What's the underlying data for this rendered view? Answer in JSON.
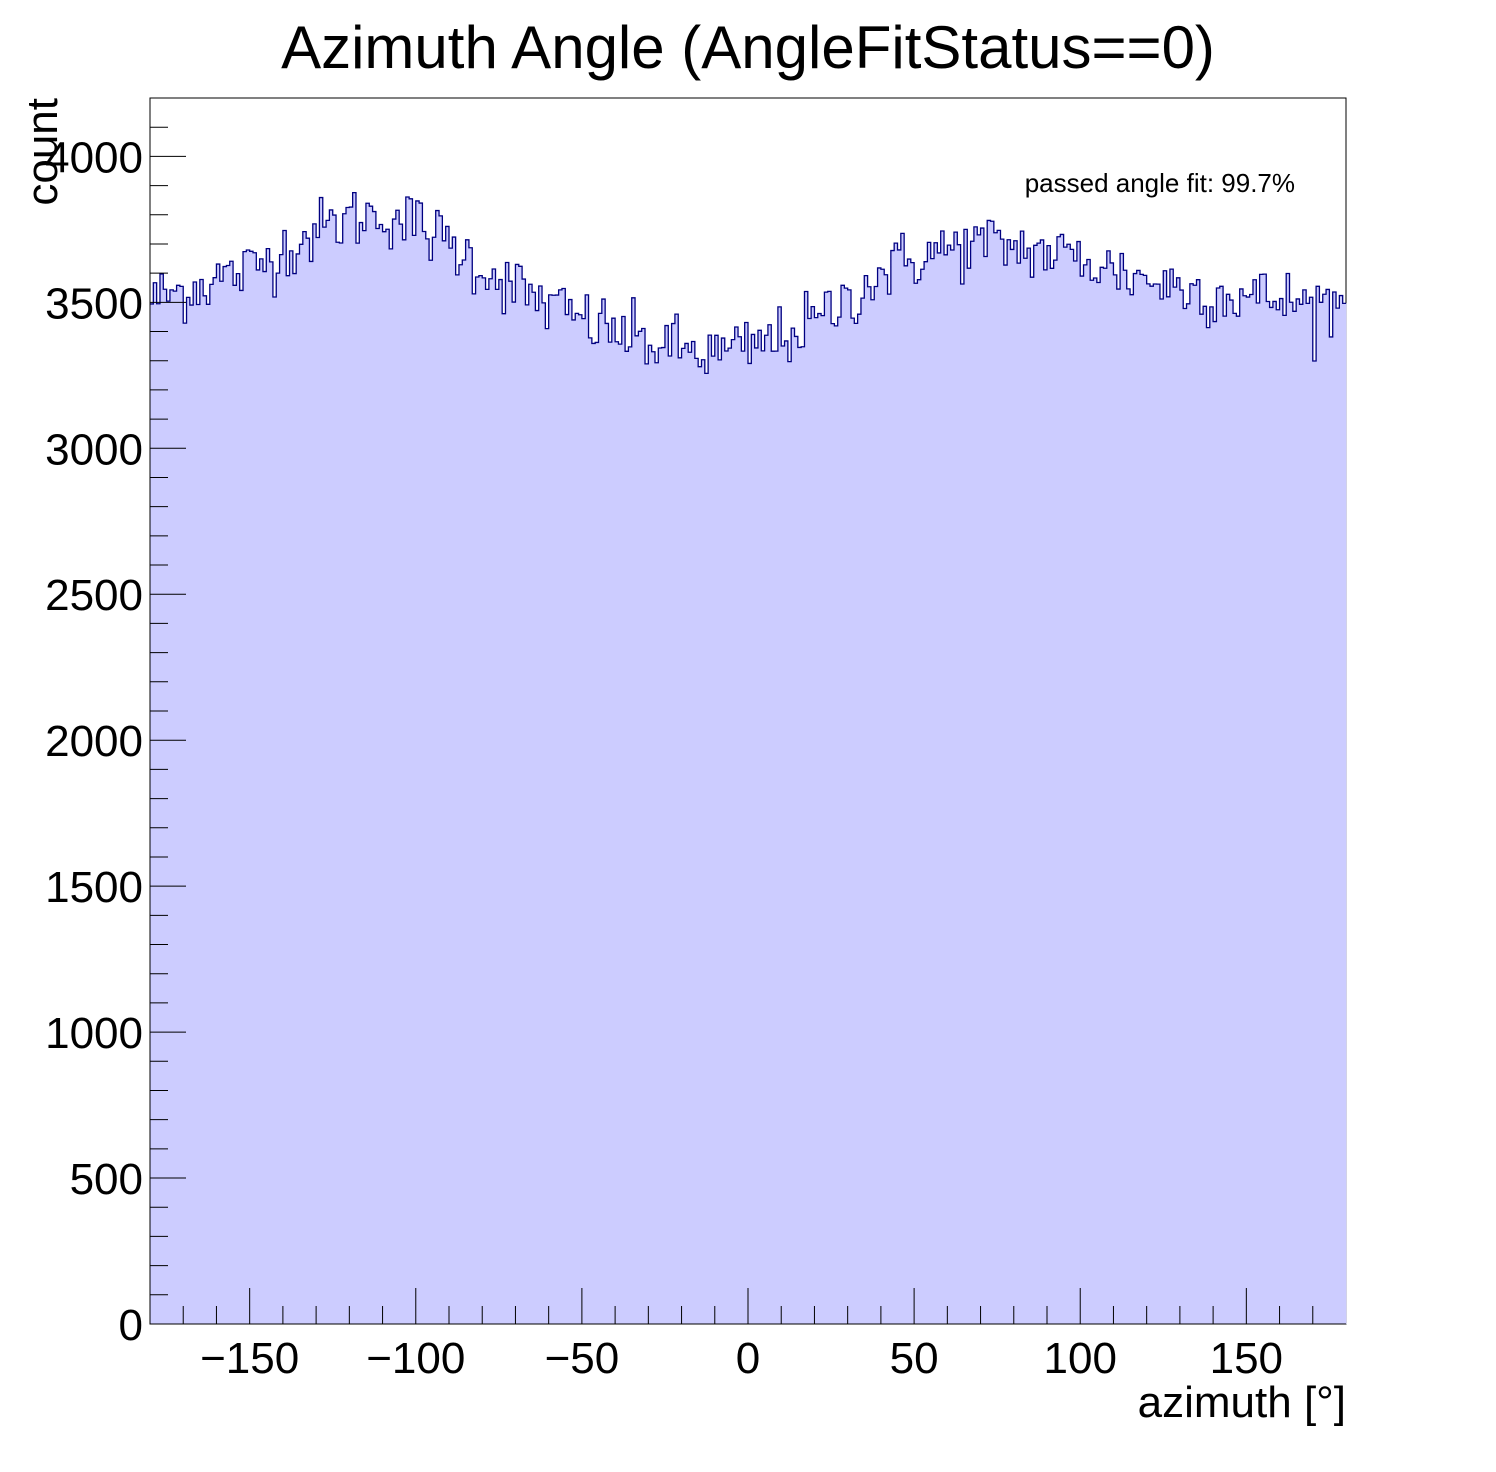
{
  "chart_data": {
    "type": "histogram",
    "title": "Azimuth Angle (AngleFitStatus==0)",
    "xlabel": "azimuth [°]",
    "ylabel": "count",
    "annotation": "passed angle fit: 99.7%",
    "xlim": [
      -180,
      180
    ],
    "ylim": [
      0,
      4200
    ],
    "x_ticks": [
      -150,
      -100,
      -50,
      0,
      50,
      100,
      150
    ],
    "x_tick_labels": [
      "−150",
      "−100",
      "−50",
      "0",
      "50",
      "100",
      "150"
    ],
    "y_ticks": [
      0,
      500,
      1000,
      1500,
      2000,
      2500,
      3000,
      3500,
      4000
    ],
    "y_tick_labels": [
      "0",
      "500",
      "1000",
      "1500",
      "2000",
      "2500",
      "3000",
      "3500",
      "4000"
    ],
    "bins": 360,
    "bin_width": 1,
    "fill_color": "#ccccff",
    "line_color": "#000080",
    "profile_x": [
      -180,
      -170,
      -160,
      -150,
      -140,
      -130,
      -120,
      -110,
      -100,
      -90,
      -80,
      -70,
      -60,
      -50,
      -40,
      -30,
      -20,
      -10,
      0,
      10,
      20,
      30,
      40,
      50,
      60,
      70,
      80,
      90,
      100,
      110,
      120,
      130,
      140,
      150,
      160,
      170,
      180
    ],
    "profile_y": [
      3510,
      3540,
      3580,
      3610,
      3680,
      3740,
      3790,
      3800,
      3770,
      3700,
      3620,
      3550,
      3490,
      3440,
      3400,
      3360,
      3340,
      3320,
      3340,
      3380,
      3430,
      3510,
      3600,
      3650,
      3680,
      3700,
      3690,
      3670,
      3650,
      3610,
      3580,
      3550,
      3530,
      3520,
      3510,
      3490,
      3500
    ]
  }
}
